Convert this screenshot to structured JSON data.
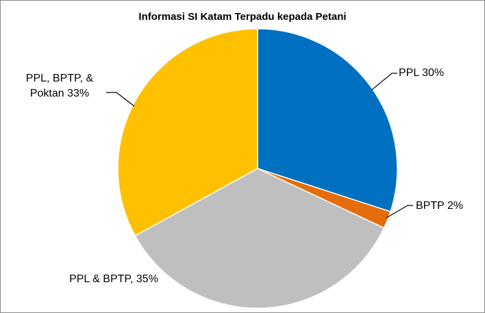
{
  "chart_data": {
    "type": "pie",
    "title": "Informasi SI Katam Terpadu kepada Petani",
    "values": [
      30,
      2,
      35,
      33
    ],
    "value_labels": [
      "PPL 30%",
      "BPTP 2%",
      "PPL & BPTP, 35%",
      "PPL, BPTP, & Poktan 33%"
    ],
    "colors": [
      "#0070c0",
      "#e46c0a",
      "#bfbfbf",
      "#ffc000"
    ]
  }
}
